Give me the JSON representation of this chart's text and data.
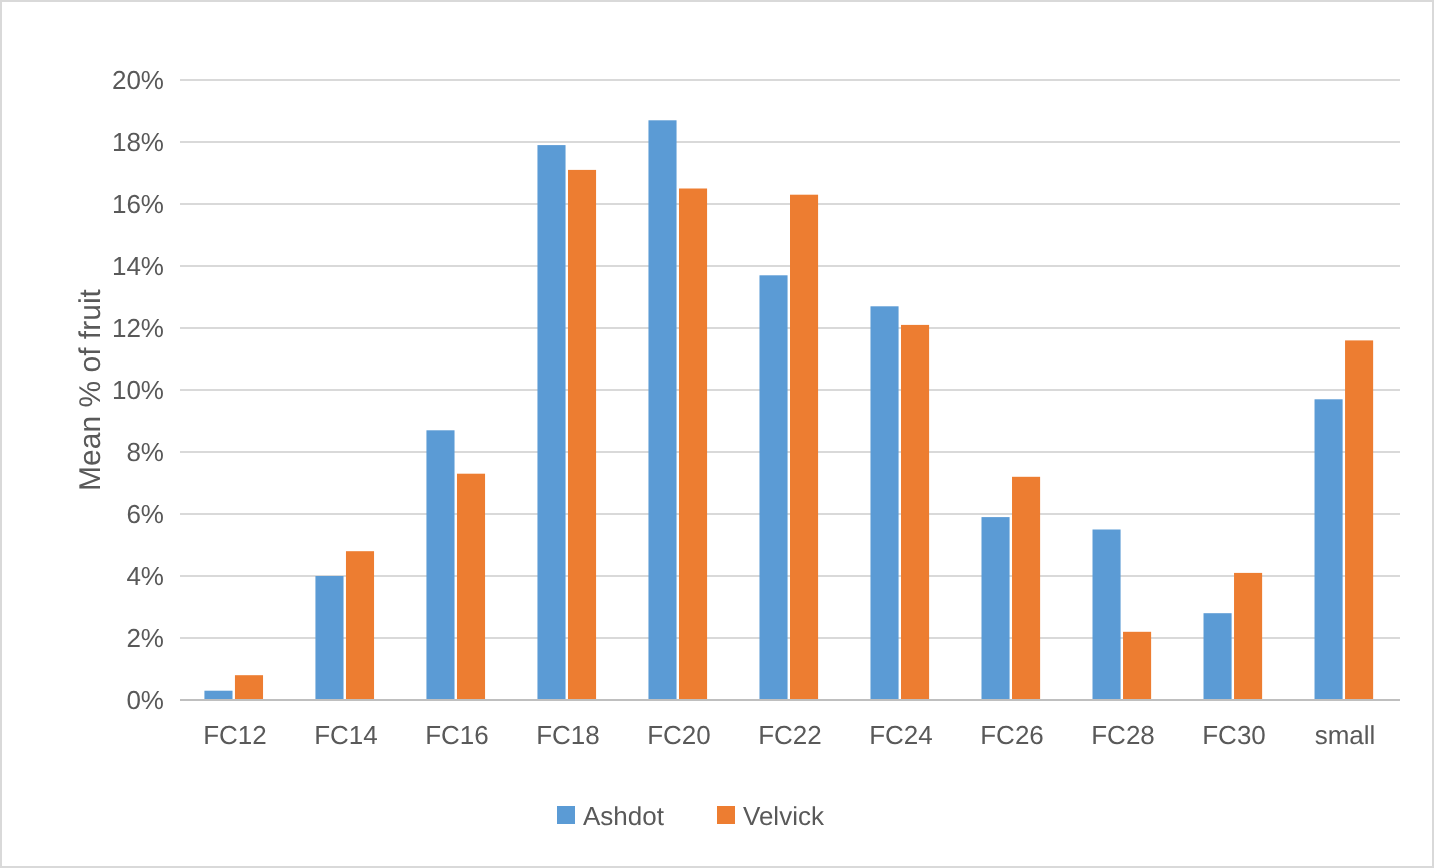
{
  "chart_data": {
    "type": "bar",
    "ylabel": "Mean % of fruit",
    "categories": [
      "FC12",
      "FC14",
      "FC16",
      "FC18",
      "FC20",
      "FC22",
      "FC24",
      "FC26",
      "FC28",
      "FC30",
      "small"
    ],
    "series": [
      {
        "name": "Ashdot",
        "color": "#5b9bd5",
        "values": [
          0.3,
          4.0,
          8.7,
          17.9,
          18.7,
          13.7,
          12.7,
          5.9,
          5.5,
          2.8,
          9.7
        ]
      },
      {
        "name": "Velvick",
        "color": "#ed7d31",
        "values": [
          0.8,
          4.8,
          7.3,
          17.1,
          16.5,
          16.3,
          12.1,
          7.2,
          2.2,
          4.1,
          11.6
        ]
      }
    ],
    "ylim": [
      0,
      20
    ],
    "yticks": [
      {
        "value": 0,
        "label": "0%"
      },
      {
        "value": 2,
        "label": "2%"
      },
      {
        "value": 4,
        "label": "4%"
      },
      {
        "value": 6,
        "label": "6%"
      },
      {
        "value": 8,
        "label": "8%"
      },
      {
        "value": 10,
        "label": "10%"
      },
      {
        "value": 12,
        "label": "12%"
      },
      {
        "value": 14,
        "label": "14%"
      },
      {
        "value": 16,
        "label": "16%"
      },
      {
        "value": 18,
        "label": "18%"
      },
      {
        "value": 20,
        "label": "20%"
      }
    ],
    "grid": "y",
    "legend": "bottom"
  }
}
